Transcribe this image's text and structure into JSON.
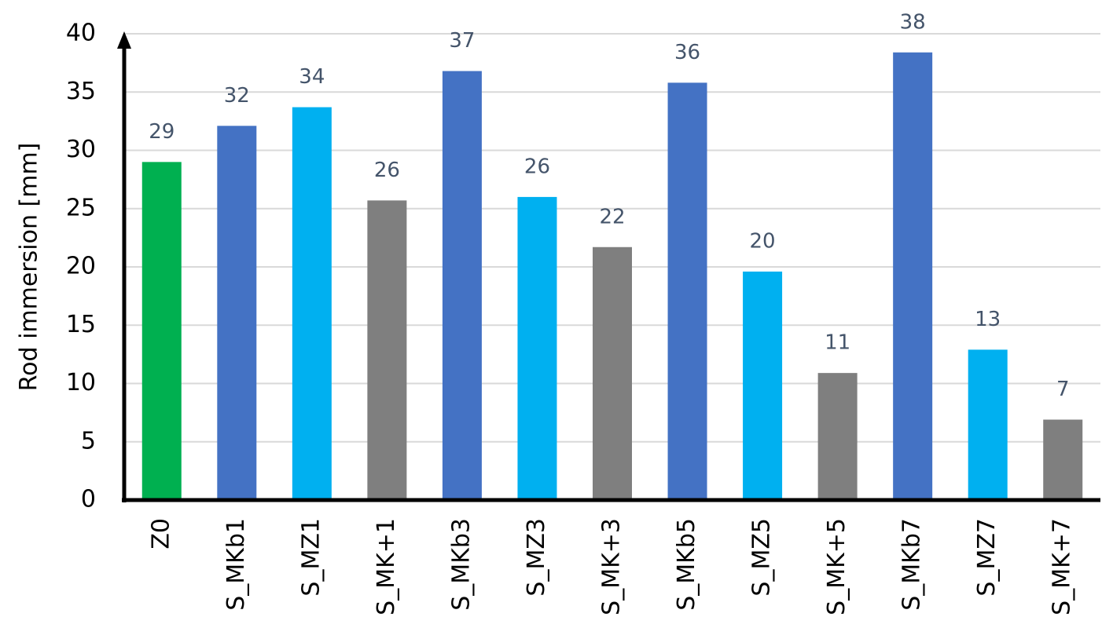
{
  "chart_data": {
    "type": "bar",
    "y_label": "Rod immersion [mm]",
    "categories": [
      "Z0",
      "S_MKb1",
      "S_MZ1",
      "S_MK+1",
      "S_MKb3",
      "S_MZ3",
      "S_MK+3",
      "S_MKb5",
      "S_MZ5",
      "S_MK+5",
      "S_MKb7",
      "S_MZ7",
      "S_MK+7"
    ],
    "values": [
      29.0,
      32.1,
      33.7,
      25.7,
      36.8,
      26.0,
      21.7,
      35.8,
      19.6,
      10.9,
      38.4,
      12.9,
      6.9
    ],
    "value_labels": [
      "29",
      "32",
      "34",
      "26",
      "37",
      "26",
      "22",
      "36",
      "20",
      "11",
      "38",
      "13",
      "7"
    ],
    "colors": [
      "#00b050",
      "#4472c4",
      "#00b0f0",
      "#7f7f7f",
      "#4472c4",
      "#00b0f0",
      "#7f7f7f",
      "#4472c4",
      "#00b0f0",
      "#7f7f7f",
      "#4472c4",
      "#00b0f0",
      "#7f7f7f"
    ],
    "ylim": [
      0,
      40
    ],
    "yticks": [
      0,
      5,
      10,
      15,
      20,
      25,
      30,
      35,
      40
    ],
    "grid": true
  }
}
